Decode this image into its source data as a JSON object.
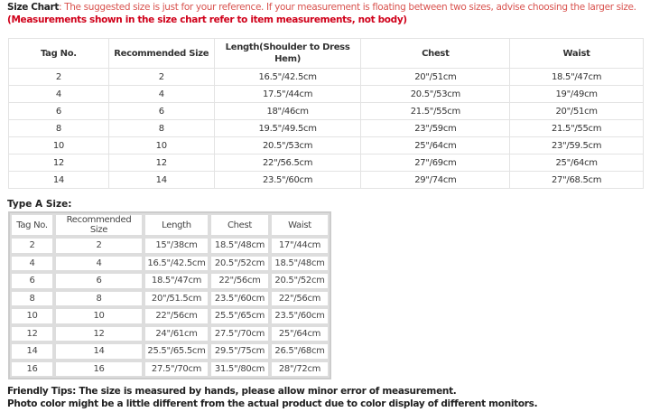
{
  "intro": {
    "label": "Size Chart",
    "text": ": The suggested size is just for your reference. If your measurement is floating between two sizes, advise choosing the larger size.",
    "note": "(Measurements shown in the size chart refer to item measurements, not body)"
  },
  "size_chart": {
    "headers": [
      "Tag No.",
      "Recommended Size",
      "Length(Shoulder to Dress Hem)",
      "Chest",
      "Waist"
    ],
    "rows": [
      [
        "2",
        "2",
        "16.5\"/42.5cm",
        "20\"/51cm",
        "18.5\"/47cm"
      ],
      [
        "4",
        "4",
        "17.5\"/44cm",
        "20.5\"/53cm",
        "19\"/49cm"
      ],
      [
        "6",
        "6",
        "18\"/46cm",
        "21.5\"/55cm",
        "20\"/51cm"
      ],
      [
        "8",
        "8",
        "19.5\"/49.5cm",
        "23\"/59cm",
        "21.5\"/55cm"
      ],
      [
        "10",
        "10",
        "20.5\"/53cm",
        "25\"/64cm",
        "23\"/59.5cm"
      ],
      [
        "12",
        "12",
        "22\"/56.5cm",
        "27\"/69cm",
        "25\"/64cm"
      ],
      [
        "14",
        "14",
        "23.5\"/60cm",
        "29\"/74cm",
        "27\"/68.5cm"
      ]
    ]
  },
  "type_a": {
    "title": "Type A Size:",
    "headers": [
      "Tag No.",
      "Recommended Size",
      "Length",
      "Chest",
      "Waist"
    ],
    "rows": [
      [
        "2",
        "2",
        "15\"/38cm",
        "18.5\"/48cm",
        "17\"/44cm"
      ],
      [
        "4",
        "4",
        "16.5\"/42.5cm",
        "20.5\"/52cm",
        "18.5\"/48cm"
      ],
      [
        "6",
        "6",
        "18.5\"/47cm",
        "22\"/56cm",
        "20.5\"/52cm"
      ],
      [
        "8",
        "8",
        "20\"/51.5cm",
        "23.5\"/60cm",
        "22\"/56cm"
      ],
      [
        "10",
        "10",
        "22\"/56cm",
        "25.5\"/65cm",
        "23.5\"/60cm"
      ],
      [
        "12",
        "12",
        "24\"/61cm",
        "27.5\"/70cm",
        "25\"/64cm"
      ],
      [
        "14",
        "14",
        "25.5\"/65.5cm",
        "29.5\"/75cm",
        "26.5\"/68cm"
      ],
      [
        "16",
        "16",
        "27.5\"/70cm",
        "31.5\"/80cm",
        "28\"/72cm"
      ]
    ]
  },
  "tips": [
    "Friendly Tips: The size is measured by hands, please allow minor error of measurement.",
    "Photo color might be a little different from the actual product due to color display of different monitors."
  ]
}
